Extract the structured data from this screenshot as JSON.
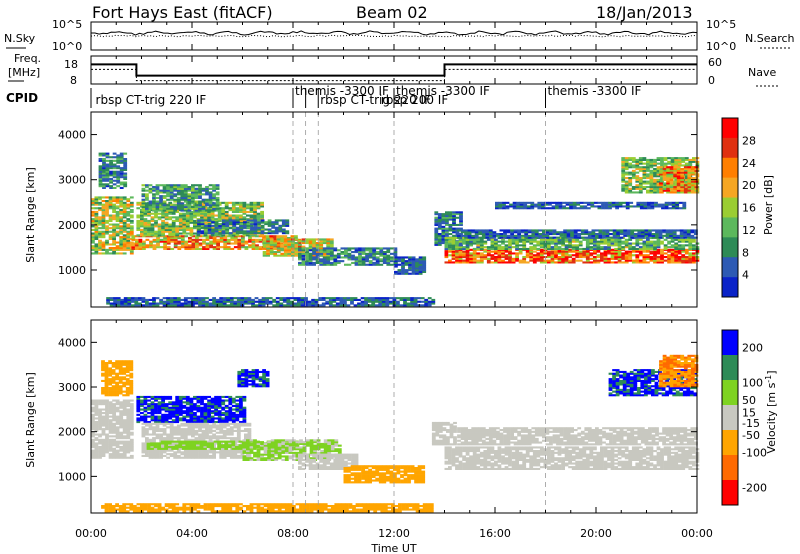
{
  "header": {
    "station": "Fort Hays East (fitACF)",
    "beam": "Beam 02",
    "date": "18/Jan/2013"
  },
  "noise_panel": {
    "left_label": "N.Sky",
    "right_label": "N.Search",
    "left_ticks": [
      "10^5",
      "10^0"
    ],
    "right_ticks": [
      "10^5",
      "10^0"
    ]
  },
  "freq_panel": {
    "left_label_1": "Freq.",
    "left_label_2": "[MHz]",
    "right_label": "Nave",
    "left_ticks": [
      "18",
      "8"
    ],
    "right_ticks": [
      "60",
      "0"
    ],
    "freq_segments": [
      {
        "start": 0.0,
        "end": 1.8,
        "freq": 15
      },
      {
        "start": 1.8,
        "end": 14.0,
        "freq": 11
      },
      {
        "start": 14.0,
        "end": 24.0,
        "freq": 15
      }
    ]
  },
  "cpid_panel": {
    "label": "CPID",
    "entries": [
      {
        "t": 0.1,
        "row": 1,
        "text": "rbsp CT-trig 220 IF"
      },
      {
        "t": 8.0,
        "row": 0,
        "text": "themis -3300 IF"
      },
      {
        "t": 9.0,
        "row": 1,
        "text": "rbsp CT-trig 220 IF"
      },
      {
        "t": 12.0,
        "row": 0,
        "text": "themis -3300 IF"
      },
      {
        "t": 11.4,
        "row": 1,
        "text": "rbsp 200 IF"
      },
      {
        "t": 18.0,
        "row": 0,
        "text": "themis -3300 IF"
      }
    ],
    "boundaries": [
      8.0,
      8.5,
      9.0,
      12.0,
      18.0
    ]
  },
  "chart_data": [
    {
      "type": "heatmap",
      "name": "power",
      "ylabel": "Slant Range [km]",
      "yticks": [
        1000,
        2000,
        3000,
        4000
      ],
      "ylim": [
        180,
        4500
      ],
      "colorbar_label": "Power [dB]",
      "colorbar_ticks": [
        4,
        8,
        12,
        16,
        20,
        24,
        28
      ],
      "colorbar_range": [
        0,
        32
      ],
      "colors": [
        "#0a23c8",
        "#2d5ab4",
        "#2e8b57",
        "#5cb85c",
        "#9acd32",
        "#f5a623",
        "#ff7f00",
        "#e03010",
        "#ff0000"
      ],
      "regions": [
        {
          "t0": 0.0,
          "t1": 1.6,
          "r0": 1350,
          "r1": 2600,
          "value": 16
        },
        {
          "t0": 0.3,
          "t1": 1.4,
          "r0": 2800,
          "r1": 3600,
          "value": 8
        },
        {
          "t0": 1.6,
          "t1": 8.2,
          "r0": 1450,
          "r1": 1750,
          "value": 21
        },
        {
          "t0": 1.8,
          "t1": 6.8,
          "r0": 1750,
          "r1": 2500,
          "value": 14
        },
        {
          "t0": 2.0,
          "t1": 5.0,
          "r0": 2300,
          "r1": 2900,
          "value": 10
        },
        {
          "t0": 4.2,
          "t1": 7.8,
          "r0": 1800,
          "r1": 2100,
          "value": 7
        },
        {
          "t0": 6.8,
          "t1": 9.6,
          "r0": 1300,
          "r1": 1700,
          "value": 18
        },
        {
          "t0": 8.2,
          "t1": 12.0,
          "r0": 1100,
          "r1": 1500,
          "value": 8
        },
        {
          "t0": 12.0,
          "t1": 13.2,
          "r0": 900,
          "r1": 1300,
          "value": 6
        },
        {
          "t0": 13.6,
          "t1": 14.6,
          "r0": 1500,
          "r1": 2300,
          "value": 7
        },
        {
          "t0": 14.0,
          "t1": 24.0,
          "r0": 1150,
          "r1": 1450,
          "value": 25
        },
        {
          "t0": 14.0,
          "t1": 24.0,
          "r0": 1450,
          "r1": 1700,
          "value": 12
        },
        {
          "t0": 14.5,
          "t1": 24.0,
          "r0": 1700,
          "r1": 1900,
          "value": 6
        },
        {
          "t0": 16.0,
          "t1": 23.5,
          "r0": 2350,
          "r1": 2500,
          "value": 5
        },
        {
          "t0": 21.0,
          "t1": 24.0,
          "r0": 2700,
          "r1": 3500,
          "value": 14
        },
        {
          "t0": 22.5,
          "t1": 24.0,
          "r0": 2700,
          "r1": 3300,
          "value": 22
        },
        {
          "t0": 0.6,
          "t1": 13.5,
          "r0": 200,
          "r1": 380,
          "value": 6
        }
      ]
    },
    {
      "type": "heatmap",
      "name": "velocity",
      "ylabel": "Slant Range [km]",
      "xlabel": "Time UT",
      "yticks": [
        1000,
        2000,
        3000,
        4000
      ],
      "ylim": [
        180,
        4500
      ],
      "colorbar_label": "Velocity [m s^-1]",
      "colorbar_ticks": [
        200,
        100,
        50,
        15,
        -15,
        -50,
        -100,
        -200
      ],
      "colorbar_range": [
        -250,
        250
      ],
      "colors": [
        "#0000ff",
        "#2e8b57",
        "#7ed321",
        "#c8c8c0",
        "#ffa500",
        "#ff6a00",
        "#ff0000"
      ],
      "regions": [
        {
          "t0": 0.0,
          "t1": 1.6,
          "r0": 1400,
          "r1": 2700,
          "value": 0
        },
        {
          "t0": 0.4,
          "t1": 1.6,
          "r0": 2800,
          "r1": 3600,
          "value": -60
        },
        {
          "t0": 1.8,
          "t1": 6.0,
          "r0": 2200,
          "r1": 2800,
          "value": 200
        },
        {
          "t0": 2.0,
          "t1": 6.2,
          "r0": 1400,
          "r1": 2200,
          "value": 0
        },
        {
          "t0": 2.2,
          "t1": 8.2,
          "r0": 1600,
          "r1": 1800,
          "value": 50
        },
        {
          "t0": 5.8,
          "t1": 7.0,
          "r0": 3000,
          "r1": 3400,
          "value": 200
        },
        {
          "t0": 6.0,
          "t1": 9.8,
          "r0": 1350,
          "r1": 1800,
          "value": 40
        },
        {
          "t0": 8.2,
          "t1": 10.5,
          "r0": 1150,
          "r1": 1500,
          "value": 15
        },
        {
          "t0": 10.0,
          "t1": 13.2,
          "r0": 850,
          "r1": 1250,
          "value": -60
        },
        {
          "t0": 13.5,
          "t1": 14.4,
          "r0": 1700,
          "r1": 2200,
          "value": 0
        },
        {
          "t0": 14.0,
          "t1": 24.0,
          "r0": 1150,
          "r1": 1650,
          "value": 0
        },
        {
          "t0": 14.5,
          "t1": 24.0,
          "r0": 1700,
          "r1": 2100,
          "value": 0
        },
        {
          "t0": 20.5,
          "t1": 24.0,
          "r0": 2800,
          "r1": 3400,
          "value": 200
        },
        {
          "t0": 22.5,
          "t1": 24.0,
          "r0": 3000,
          "r1": 3700,
          "value": -100
        },
        {
          "t0": 0.4,
          "t1": 13.5,
          "r0": 200,
          "r1": 380,
          "value": -60
        }
      ]
    }
  ],
  "time_axis": {
    "xlabel": "Time UT",
    "xticks": [
      "00:00",
      "04:00",
      "08:00",
      "12:00",
      "16:00",
      "20:00",
      "00:00"
    ]
  }
}
